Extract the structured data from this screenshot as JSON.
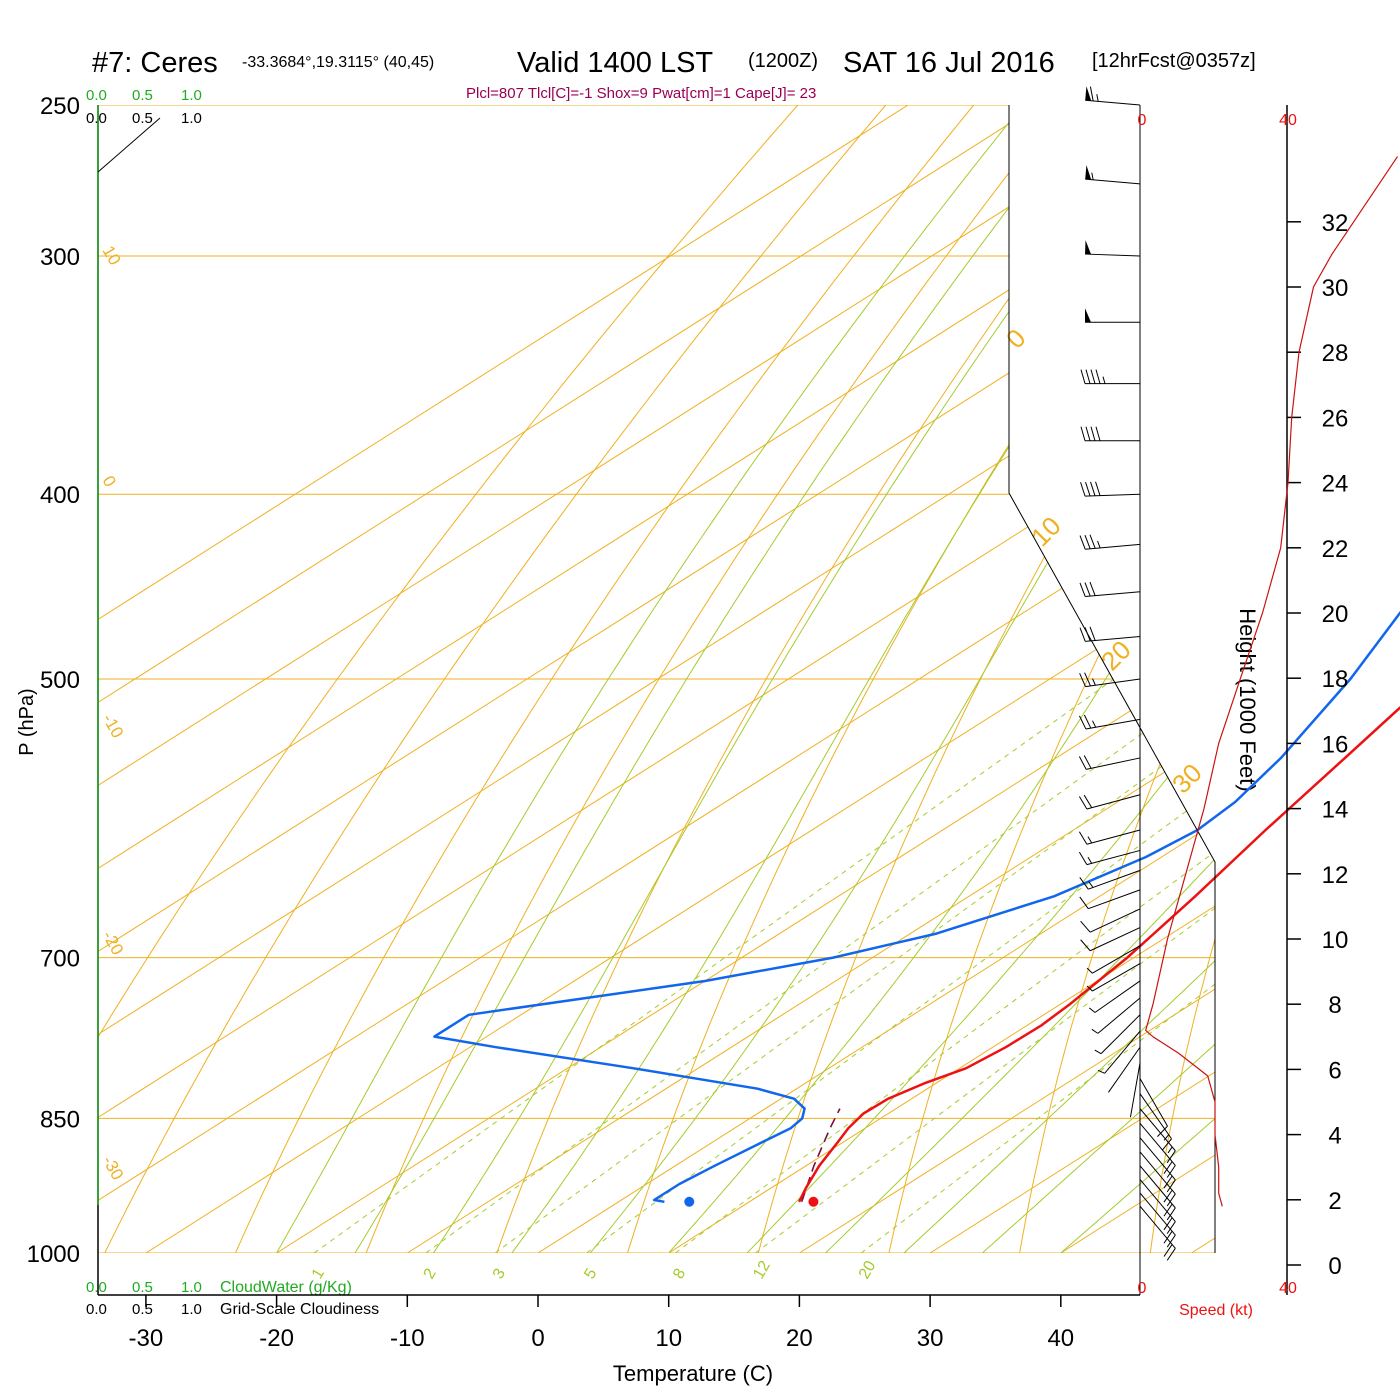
{
  "header": {
    "station": "#7: Ceres",
    "coords": "-33.3684°,19.3115° (40,45)",
    "valid": "Valid 1400 LST",
    "utc": "(1200Z)",
    "date": "SAT 16 Jul 2016",
    "forecast": "[12hrFcst@0357z]"
  },
  "indices": "Plcl=807 Tlcl[C]=-1 Shox=9 Pwat[cm]=1 Cape[J]= 23",
  "cloud_scale": {
    "values": [
      "0.0",
      "0.5",
      "1.0"
    ],
    "cloudwater_label": "CloudWater (g/Kg)",
    "cloudiness_label": "Grid-Scale Cloudiness"
  },
  "colors": {
    "temperature": "#ee1111",
    "dewpoint": "#1166ee",
    "parcel": "#7a1040",
    "isotherm": "#f0b020",
    "dry_adiabat": "#f0b020",
    "moist_adiabat": "#a4cc2c",
    "mixing_ratio": "#a4cc2c",
    "cloudwater": "#22aa22",
    "wind_speed": "#cc1111",
    "indices": "#990055"
  },
  "chart_data": {
    "type": "skew-t",
    "xlabel": "Temperature (C)",
    "ylabel": "P (hPa)",
    "x_ticks": [
      -30,
      -20,
      -10,
      0,
      10,
      20,
      30,
      40
    ],
    "xlim": [
      -34,
      46
    ],
    "y_ticks": [
      250,
      300,
      400,
      500,
      700,
      850,
      1000
    ],
    "ylim": [
      1000,
      250
    ],
    "y_scale": "log",
    "isotherm_labels": [
      10,
      0,
      -10,
      -20,
      -30,
      0,
      10,
      20,
      30
    ],
    "mixing_ratio_labels": [
      "1",
      "2",
      "3",
      "5",
      "8",
      "12",
      "20"
    ],
    "temperature_profile": [
      {
        "p": 940,
        "t": 13.8
      },
      {
        "p": 925,
        "t": 12.7
      },
      {
        "p": 900,
        "t": 11.0
      },
      {
        "p": 875,
        "t": 9.6
      },
      {
        "p": 860,
        "t": 8.7
      },
      {
        "p": 845,
        "t": 8.1
      },
      {
        "p": 830,
        "t": 8.2
      },
      {
        "p": 815,
        "t": 9.1
      },
      {
        "p": 800,
        "t": 10.5
      },
      {
        "p": 780,
        "t": 11.0
      },
      {
        "p": 760,
        "t": 11.1
      },
      {
        "p": 740,
        "t": 10.7
      },
      {
        "p": 720,
        "t": 10.1
      },
      {
        "p": 700,
        "t": 9.5
      },
      {
        "p": 650,
        "t": 7.3
      },
      {
        "p": 600,
        "t": 4.7
      },
      {
        "p": 550,
        "t": 2.1
      },
      {
        "p": 500,
        "t": -0.8
      },
      {
        "p": 450,
        "t": -4.4
      },
      {
        "p": 400,
        "t": -9.0
      },
      {
        "p": 350,
        "t": -14.7
      },
      {
        "p": 300,
        "t": -22.0
      },
      {
        "p": 275,
        "t": -26.8
      },
      {
        "p": 250,
        "t": -29.9
      }
    ],
    "dewpoint_profile": [
      {
        "p": 940,
        "t": 3.5
      },
      {
        "p": 938,
        "t": 2.5
      },
      {
        "p": 920,
        "t": 2.5
      },
      {
        "p": 900,
        "t": 3.0
      },
      {
        "p": 875,
        "t": 3.8
      },
      {
        "p": 860,
        "t": 4.3
      },
      {
        "p": 850,
        "t": 4.0
      },
      {
        "p": 840,
        "t": 3.0
      },
      {
        "p": 830,
        "t": 1.0
      },
      {
        "p": 820,
        "t": -3.0
      },
      {
        "p": 800,
        "t": -15.0
      },
      {
        "p": 780,
        "t": -28.0
      },
      {
        "p": 770,
        "t": -34.0
      },
      {
        "p": 750,
        "t": -34.0
      },
      {
        "p": 720,
        "t": -20.0
      },
      {
        "p": 700,
        "t": -13.0
      },
      {
        "p": 680,
        "t": -8.0
      },
      {
        "p": 650,
        "t": -3.5
      },
      {
        "p": 620,
        "t": -1.2
      },
      {
        "p": 600,
        "t": -0.5
      },
      {
        "p": 580,
        "t": -1.0
      },
      {
        "p": 550,
        "t": -2.8
      },
      {
        "p": 500,
        "t": -7.0
      },
      {
        "p": 450,
        "t": -12.5
      },
      {
        "p": 410,
        "t": -17.5
      },
      {
        "p": 400,
        "t": -18.2
      },
      {
        "p": 380,
        "t": -19.0
      },
      {
        "p": 350,
        "t": -20.2
      },
      {
        "p": 320,
        "t": -22.0
      },
      {
        "p": 300,
        "t": -24.8
      },
      {
        "p": 270,
        "t": -29.2
      },
      {
        "p": 250,
        "t": -32.5
      }
    ],
    "parcel_profile": [
      {
        "p": 940,
        "t": 14.0
      },
      {
        "p": 900,
        "t": 10.6
      },
      {
        "p": 860,
        "t": 7.3
      },
      {
        "p": 840,
        "t": 5.7
      }
    ],
    "surface_points": {
      "temperature": {
        "p": 940,
        "t": 14.9
      },
      "dewpoint": {
        "p": 940,
        "t": 5.4
      }
    },
    "height_axis": {
      "label": "Height (1000 Feet)",
      "ticks": [
        0,
        2,
        4,
        6,
        8,
        10,
        12,
        14,
        16,
        18,
        20,
        22,
        24,
        26,
        28,
        30,
        32
      ]
    },
    "wind_speed_axis": {
      "label": "Speed (kt)",
      "ticks": [
        0,
        40,
        80,
        120
      ]
    },
    "wind_speed_profile": [
      {
        "h": 1.8,
        "s": 22
      },
      {
        "h": 2.2,
        "s": 21
      },
      {
        "h": 3.0,
        "s": 21
      },
      {
        "h": 4.0,
        "s": 20
      },
      {
        "h": 5.0,
        "s": 20
      },
      {
        "h": 5.8,
        "s": 18
      },
      {
        "h": 6.5,
        "s": 10
      },
      {
        "h": 7.0,
        "s": 3
      },
      {
        "h": 7.2,
        "s": 1
      },
      {
        "h": 8.0,
        "s": 3
      },
      {
        "h": 10.0,
        "s": 7
      },
      {
        "h": 12.0,
        "s": 12
      },
      {
        "h": 14.0,
        "s": 17
      },
      {
        "h": 16.0,
        "s": 21
      },
      {
        "h": 18.0,
        "s": 27
      },
      {
        "h": 20.0,
        "s": 33
      },
      {
        "h": 22.0,
        "s": 38
      },
      {
        "h": 24.0,
        "s": 40
      },
      {
        "h": 26.0,
        "s": 41
      },
      {
        "h": 28.0,
        "s": 43
      },
      {
        "h": 30.0,
        "s": 47
      },
      {
        "h": 31.0,
        "s": 52
      },
      {
        "h": 32.0,
        "s": 58
      },
      {
        "h": 33.0,
        "s": 64
      },
      {
        "h": 34.0,
        "s": 70
      }
    ],
    "wind_barbs": [
      {
        "p": 250,
        "speed": 65,
        "dir": 275
      },
      {
        "p": 275,
        "speed": 55,
        "dir": 275
      },
      {
        "p": 300,
        "speed": 52,
        "dir": 272
      },
      {
        "p": 325,
        "speed": 50,
        "dir": 270
      },
      {
        "p": 350,
        "speed": 45,
        "dir": 270
      },
      {
        "p": 375,
        "speed": 42,
        "dir": 270
      },
      {
        "p": 400,
        "speed": 40,
        "dir": 268
      },
      {
        "p": 425,
        "speed": 38,
        "dir": 265
      },
      {
        "p": 450,
        "speed": 33,
        "dir": 265
      },
      {
        "p": 475,
        "speed": 30,
        "dir": 265
      },
      {
        "p": 500,
        "speed": 28,
        "dir": 262
      },
      {
        "p": 525,
        "speed": 25,
        "dir": 260
      },
      {
        "p": 550,
        "speed": 22,
        "dir": 258
      },
      {
        "p": 575,
        "speed": 20,
        "dir": 255
      },
      {
        "p": 600,
        "speed": 18,
        "dir": 255
      },
      {
        "p": 615,
        "speed": 16,
        "dir": 255
      },
      {
        "p": 630,
        "speed": 15,
        "dir": 250
      },
      {
        "p": 645,
        "speed": 13,
        "dir": 250
      },
      {
        "p": 660,
        "speed": 12,
        "dir": 245
      },
      {
        "p": 675,
        "speed": 10,
        "dir": 245
      },
      {
        "p": 690,
        "speed": 9,
        "dir": 240
      },
      {
        "p": 705,
        "speed": 8,
        "dir": 240
      },
      {
        "p": 720,
        "speed": 7,
        "dir": 235
      },
      {
        "p": 735,
        "speed": 6,
        "dir": 230
      },
      {
        "p": 750,
        "speed": 5,
        "dir": 225
      },
      {
        "p": 765,
        "speed": 5,
        "dir": 220
      },
      {
        "p": 780,
        "speed": 4,
        "dir": 215
      },
      {
        "p": 795,
        "speed": 4,
        "dir": 190
      },
      {
        "p": 810,
        "speed": 10,
        "dir": 150
      },
      {
        "p": 825,
        "speed": 15,
        "dir": 145
      },
      {
        "p": 840,
        "speed": 18,
        "dir": 140
      },
      {
        "p": 855,
        "speed": 20,
        "dir": 140
      },
      {
        "p": 870,
        "speed": 20,
        "dir": 140
      },
      {
        "p": 885,
        "speed": 20,
        "dir": 140
      },
      {
        "p": 900,
        "speed": 21,
        "dir": 140
      },
      {
        "p": 915,
        "speed": 21,
        "dir": 140
      },
      {
        "p": 930,
        "speed": 22,
        "dir": 140
      },
      {
        "p": 945,
        "speed": 22,
        "dir": 140
      }
    ]
  }
}
